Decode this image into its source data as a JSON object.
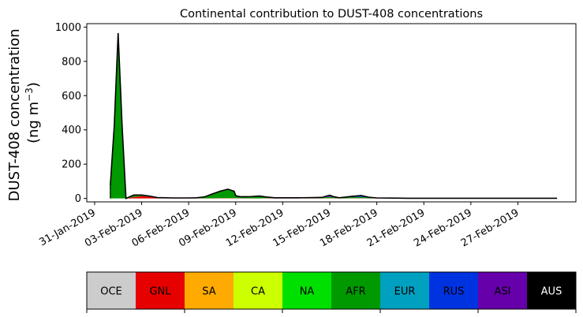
{
  "chart_data": {
    "type": "area",
    "title": "Continental contribution to DUST-408 concentrations",
    "ylabel_line1": "DUST-408 concentration",
    "ylabel_line2_prefix": "(ng m",
    "ylabel_line2_sup": "−3",
    "ylabel_line2_suffix": ")",
    "xlabel": "",
    "ylim": [
      -20,
      1020
    ],
    "yticks": [
      0,
      200,
      400,
      600,
      800,
      1000
    ],
    "xlim_days": [
      -0.5,
      30.7
    ],
    "xticks": [
      {
        "day": 0,
        "label": "31-Jan-2019"
      },
      {
        "day": 3,
        "label": "03-Feb-2019"
      },
      {
        "day": 6,
        "label": "06-Feb-2019"
      },
      {
        "day": 9,
        "label": "09-Feb-2019"
      },
      {
        "day": 12,
        "label": "12-Feb-2019"
      },
      {
        "day": 15,
        "label": "15-Feb-2019"
      },
      {
        "day": 18,
        "label": "18-Feb-2019"
      },
      {
        "day": 21,
        "label": "21-Feb-2019"
      },
      {
        "day": 24,
        "label": "24-Feb-2019"
      },
      {
        "day": 27,
        "label": "27-Feb-2019"
      }
    ],
    "x": [
      1.0,
      1.25,
      1.5,
      1.75,
      2.0,
      2.5,
      3.0,
      3.5,
      4.0,
      5.0,
      6.0,
      6.5,
      7.0,
      7.5,
      8.0,
      8.5,
      8.9,
      9.0,
      9.3,
      9.6,
      10.0,
      10.5,
      11.0,
      11.5,
      12.0,
      13.0,
      14.0,
      14.5,
      14.8,
      15.0,
      15.3,
      15.6,
      16.0,
      16.5,
      17.0,
      17.5,
      18.0,
      19.0,
      20.0,
      21.0,
      22.0,
      23.0,
      24.0,
      25.0,
      26.0,
      27.0,
      28.0,
      29.0,
      29.5
    ],
    "series": [
      {
        "name": "GNL",
        "color": "#e60000",
        "values": [
          0,
          0,
          0,
          0,
          0,
          8,
          14,
          10,
          3,
          1,
          1,
          1,
          1,
          1,
          2,
          2,
          2,
          2,
          2,
          1,
          1,
          1,
          2,
          1,
          1,
          1,
          1,
          1,
          2,
          2,
          2,
          1,
          1,
          2,
          2,
          1,
          1,
          1,
          0,
          0,
          0,
          0,
          0,
          0,
          0,
          0,
          0,
          0,
          0
        ]
      },
      {
        "name": "SA",
        "color": "#ffaa00",
        "values": [
          0,
          0,
          0,
          0,
          0,
          0,
          0,
          0,
          0,
          0,
          0,
          0,
          0,
          0,
          0,
          0,
          0,
          0,
          0,
          0,
          0,
          0,
          0,
          0,
          0,
          0,
          0,
          0,
          0,
          0,
          0,
          0,
          0,
          0,
          0,
          0,
          0,
          0,
          0,
          0,
          0,
          0,
          0,
          0,
          0,
          0,
          0,
          0,
          0
        ]
      },
      {
        "name": "CA",
        "color": "#ccff00",
        "values": [
          0,
          0,
          0,
          0,
          0,
          0,
          0,
          0,
          0,
          0,
          0,
          0,
          0,
          0,
          0,
          0,
          0,
          0,
          0,
          0,
          0,
          0,
          0,
          0,
          0,
          0,
          0,
          0,
          0,
          0,
          0,
          0,
          0,
          0,
          0,
          0,
          0,
          0,
          0,
          0,
          0,
          0,
          0,
          0,
          0,
          0,
          0,
          0,
          0
        ]
      },
      {
        "name": "NA",
        "color": "#00e000",
        "values": [
          0,
          0,
          0,
          0,
          0,
          0,
          0,
          0,
          0,
          0,
          0,
          0,
          0,
          0,
          0,
          0,
          0,
          0,
          0,
          0,
          0,
          0,
          0,
          0,
          0,
          0,
          0,
          0,
          0,
          0,
          0,
          0,
          0,
          0,
          0,
          0,
          0,
          0,
          0,
          0,
          0,
          0,
          0,
          0,
          0,
          0,
          0,
          0,
          0
        ]
      },
      {
        "name": "AFR",
        "color": "#009900",
        "values": [
          75,
          420,
          965,
          430,
          0,
          12,
          6,
          4,
          2,
          2,
          2,
          3,
          8,
          25,
          40,
          52,
          40,
          14,
          8,
          9,
          10,
          13,
          6,
          3,
          3,
          3,
          4,
          4,
          6,
          7,
          4,
          3,
          4,
          6,
          7,
          3,
          2,
          1,
          1,
          1,
          1,
          1,
          1,
          1,
          1,
          1,
          1,
          1,
          1
        ]
      },
      {
        "name": "EUR",
        "color": "#00a0c0",
        "values": [
          0,
          0,
          0,
          0,
          0,
          0,
          0,
          0,
          0,
          0,
          0,
          0,
          0,
          0,
          0,
          0,
          0,
          0,
          0,
          0,
          0,
          0,
          0,
          0,
          0,
          0,
          0,
          0,
          0,
          0,
          0,
          0,
          0,
          0,
          0,
          0,
          0,
          0,
          0,
          0,
          0,
          0,
          0,
          0,
          0,
          0,
          0,
          0,
          0
        ]
      },
      {
        "name": "RUS",
        "color": "#0033e0",
        "values": [
          0,
          0,
          0,
          0,
          0,
          0,
          0,
          0,
          0,
          0,
          0,
          0,
          0,
          0,
          0,
          0,
          0,
          0,
          0,
          0,
          0,
          0,
          0,
          0,
          0,
          0,
          0,
          0,
          1,
          2,
          1,
          0,
          2,
          3,
          5,
          2,
          0,
          0,
          0,
          0,
          0,
          0,
          0,
          0,
          0,
          0,
          0,
          0,
          0
        ]
      },
      {
        "name": "ASI",
        "color": "#6600aa",
        "values": [
          0,
          0,
          0,
          0,
          0,
          0,
          0,
          0,
          0,
          0,
          0,
          0,
          0,
          0,
          0,
          0,
          0,
          0,
          0,
          0,
          0,
          0,
          0,
          0,
          0,
          0,
          0,
          1,
          5,
          8,
          2,
          0,
          1,
          2,
          3,
          1,
          0,
          0,
          0,
          0,
          0,
          0,
          0,
          0,
          0,
          0,
          0,
          0,
          0
        ]
      }
    ],
    "total_line_color": "#000000",
    "legend": [
      {
        "name": "OCE",
        "color": "#cccccc",
        "text_color": "#000000"
      },
      {
        "name": "GNL",
        "color": "#e60000",
        "text_color": "#000000"
      },
      {
        "name": "SA",
        "color": "#ffaa00",
        "text_color": "#000000"
      },
      {
        "name": "CA",
        "color": "#ccff00",
        "text_color": "#000000"
      },
      {
        "name": "NA",
        "color": "#00e000",
        "text_color": "#000000"
      },
      {
        "name": "AFR",
        "color": "#009900",
        "text_color": "#000000"
      },
      {
        "name": "EUR",
        "color": "#00a0c0",
        "text_color": "#000000"
      },
      {
        "name": "RUS",
        "color": "#0033e0",
        "text_color": "#000000"
      },
      {
        "name": "ASI",
        "color": "#6600aa",
        "text_color": "#000000"
      },
      {
        "name": "AUS",
        "color": "#000000",
        "text_color": "#ffffff"
      }
    ],
    "legend_placement": "bottom colorbar",
    "grid": false
  }
}
